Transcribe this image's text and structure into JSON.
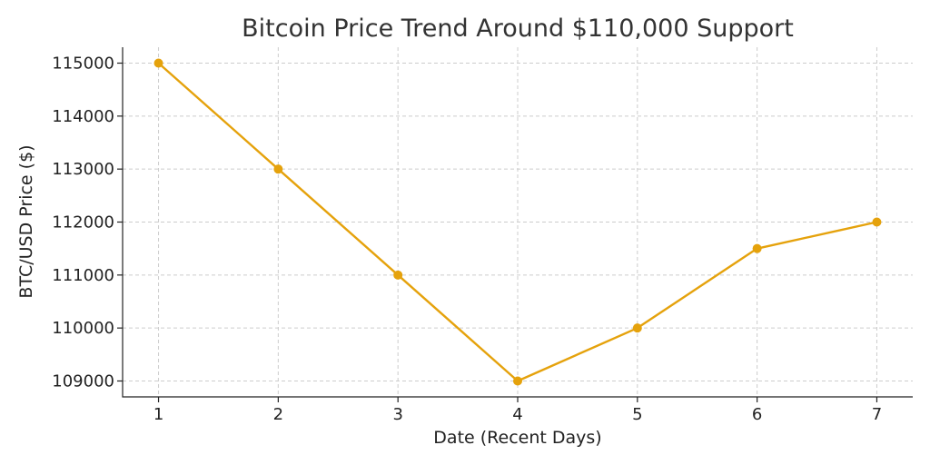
{
  "chart_data": {
    "type": "line",
    "title": "Bitcoin Price Trend Around $110,000 Support",
    "xlabel": "Date (Recent Days)",
    "ylabel": "BTC/USD Price ($)",
    "x": [
      1,
      2,
      3,
      4,
      5,
      6,
      7
    ],
    "series": [
      {
        "values": [
          115000,
          113000,
          111000,
          109000,
          110000,
          111500,
          112000
        ]
      }
    ],
    "xticks": [
      1,
      2,
      3,
      4,
      5,
      6,
      7
    ],
    "yticks": [
      109000,
      110000,
      111000,
      112000,
      113000,
      114000,
      115000
    ],
    "xlim": [
      0.7,
      7.3
    ],
    "ylim": [
      108700,
      115300
    ],
    "grid": true,
    "line_color": "#e5a20c",
    "axis_color": "#222222",
    "grid_color": "#cccccc"
  }
}
